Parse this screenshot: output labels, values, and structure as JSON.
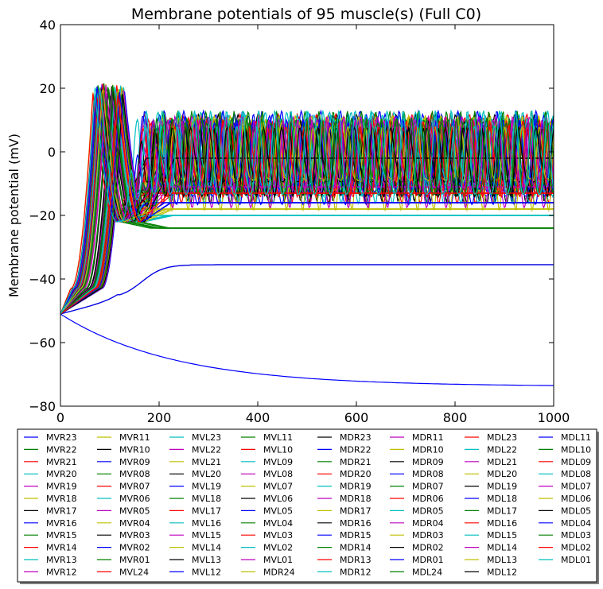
{
  "chart_data": {
    "type": "line",
    "title": "Membrane potentials of 95 muscle(s) (Full C0)",
    "xlabel": "",
    "ylabel": "Membrane potential (mV)",
    "xlim": [
      0,
      1000
    ],
    "ylim": [
      -80,
      40
    ],
    "xticks": [
      "0",
      "200",
      "400",
      "600",
      "800",
      "1000"
    ],
    "yticks": [
      "40",
      "20",
      "0",
      "−20",
      "−40",
      "−60",
      "−80"
    ],
    "grid": false,
    "legend_position": "bottom",
    "series_colors": [
      "#0000ff",
      "#008000",
      "#ff0000",
      "#00bfbf",
      "#bf00bf",
      "#bfbf00",
      "#000000"
    ],
    "legend_columns": [
      [
        "MVR23",
        "MVR22",
        "MVR21",
        "MVR20",
        "MVR19",
        "MVR18",
        "MVR17",
        "MVR16",
        "MVR15",
        "MVR14",
        "MVR13",
        "MVR12"
      ],
      [
        "MVR11",
        "MVR10",
        "MVR09",
        "MVR08",
        "MVR07",
        "MVR06",
        "MVR05",
        "MVR04",
        "MVR03",
        "MVR02",
        "MVR01",
        "MVL24"
      ],
      [
        "MVL23",
        "MVL22",
        "MVL21",
        "MVL20",
        "MVL19",
        "MVL18",
        "MVL17",
        "MVL16",
        "MVL15",
        "MVL14",
        "MVL13",
        "MVL12"
      ],
      [
        "MVL11",
        "MVL10",
        "MVL09",
        "MVL08",
        "MVL07",
        "MVL06",
        "MVL05",
        "MVL04",
        "MVL03",
        "MVL02",
        "MVL01",
        "MDR24"
      ],
      [
        "MDR23",
        "MDR22",
        "MDR21",
        "MDR20",
        "MDR19",
        "MDR18",
        "MDR17",
        "MDR16",
        "MDR15",
        "MDR14",
        "MDR13",
        "MDR12"
      ],
      [
        "MDR11",
        "MDR10",
        "MDR09",
        "MDR08",
        "MDR07",
        "MDR06",
        "MDR05",
        "MDR04",
        "MDR03",
        "MDR02",
        "MDR01",
        "MDL24"
      ],
      [
        "MDL23",
        "MDL22",
        "MDL21",
        "MDL20",
        "MDL19",
        "MDL18",
        "MDL17",
        "MDL16",
        "MDL15",
        "MDL14",
        "MDL13",
        "MDL12"
      ],
      [
        "MDL11",
        "MDL10",
        "MDL09",
        "MDL08",
        "MDL07",
        "MDL06",
        "MDL05",
        "MDL04",
        "MDL03",
        "MDL02",
        "MDL01"
      ]
    ],
    "series_behaviour": {
      "start_value": -51,
      "spike_peak_range": [
        18,
        22
      ],
      "spike_time_range": [
        65,
        130
      ],
      "oscillation_range": [
        -20,
        13
      ],
      "steady_levels": [
        -26,
        -24,
        -22,
        -20,
        -19,
        -18,
        -17,
        -16,
        -15,
        -13,
        -12,
        -11,
        -10,
        -2
      ],
      "slow_pair_final": -35.5,
      "decay_series_final": -73.8
    }
  }
}
